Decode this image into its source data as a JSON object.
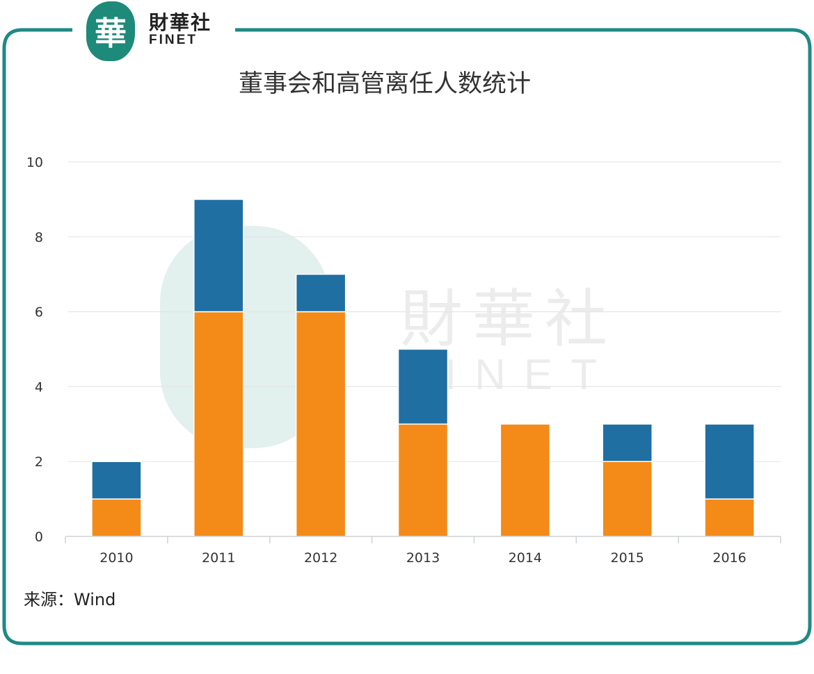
{
  "header": {
    "logo_glyph": "華",
    "logo_name": "財華社",
    "logo_en": "FINET"
  },
  "colors": {
    "frame": "#1e8a85",
    "series_orange": "#f48a18",
    "series_blue": "#1f6fa3",
    "grid": "#e3e6e8"
  },
  "chart_data": {
    "type": "bar",
    "stacked": true,
    "title": "董事会和高管离任人数统计",
    "categories": [
      "2010",
      "2011",
      "2012",
      "2013",
      "2014",
      "2015",
      "2016"
    ],
    "series": [
      {
        "values": [
          1,
          6,
          6,
          3,
          3,
          2,
          1
        ],
        "color": "#f48a18"
      },
      {
        "values": [
          1,
          3,
          1,
          2,
          0,
          1,
          2
        ],
        "color": "#1f6fa3"
      }
    ],
    "ylim": [
      0,
      10
    ],
    "yticks": [
      0,
      2,
      4,
      6,
      8,
      10
    ],
    "grid": true,
    "legend": "none"
  },
  "source": "来源：Wind"
}
